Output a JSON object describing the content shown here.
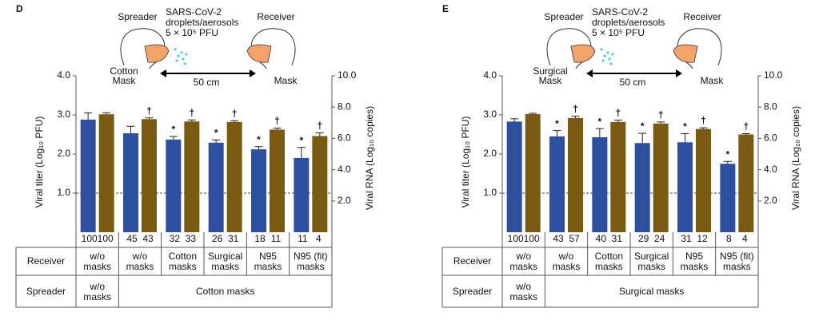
{
  "chart_data": [
    {
      "type": "bar",
      "panel": "D",
      "diagram": {
        "spreader": "Spreader",
        "receiver": "Receiver",
        "agent": [
          "SARS-CoV-2",
          "droplets/aerosols",
          "5 × 10⁵ PFU"
        ],
        "spreader_mask": [
          "Cotton",
          "Mask"
        ],
        "receiver_mask": "Mask",
        "distance": "50 cm"
      },
      "ylabel": "Viral titer (Log₁₀ PFU)",
      "y2label": "Viral RNA (Log₁₀ copies)",
      "ylim": [
        0,
        4
      ],
      "yticks": [
        {
          "value": 1,
          "label": "1.0"
        },
        {
          "value": 2,
          "label": "2.0"
        },
        {
          "value": 3,
          "label": "3.0"
        },
        {
          "value": 4,
          "label": "4.0"
        }
      ],
      "y2lim": [
        0,
        10
      ],
      "y2ticks": [
        {
          "value": 2,
          "label": "2.0"
        },
        {
          "value": 4,
          "label": "4.0"
        },
        {
          "value": 6,
          "label": "6.0"
        },
        {
          "value": 8,
          "label": "8.0"
        },
        {
          "value": 10,
          "label": "10.0"
        }
      ],
      "reference_line": 1,
      "categories": [
        "w/o masks",
        "w/o masks",
        "Cotton masks",
        "Surgical masks",
        "N95 masks",
        "N95 (fit) masks"
      ],
      "series": [
        {
          "color": "#2d4f9f",
          "axis": "y",
          "values": [
            2.88,
            2.53,
            2.37,
            2.29,
            2.12,
            1.9
          ],
          "errors": [
            0.17,
            0.18,
            0.08,
            0.07,
            0.07,
            0.27
          ],
          "relative": [
            100,
            45,
            32,
            26,
            18,
            11
          ],
          "significance": [
            null,
            null,
            "*",
            "*",
            "*",
            "*"
          ]
        },
        {
          "color": "#7b5b12",
          "axis": "y2",
          "values": [
            7.54,
            7.23,
            7.08,
            7.05,
            6.56,
            6.15
          ],
          "errors": [
            0.1,
            0.08,
            0.1,
            0.08,
            0.1,
            0.2
          ],
          "relative": [
            100,
            43,
            33,
            31,
            11,
            4
          ],
          "significance": [
            null,
            "†",
            "†",
            "†",
            "†",
            "†"
          ]
        }
      ],
      "row_labels": [
        "Receiver",
        "Spreader"
      ],
      "spreader_groups": [
        "w/o masks",
        "Cotton masks"
      ]
    },
    {
      "type": "bar",
      "panel": "E",
      "diagram": {
        "spreader": "Spreader",
        "receiver": "Receiver",
        "agent": [
          "SARS-CoV-2",
          "droplets/aerosols",
          "5 × 10⁵ PFU"
        ],
        "spreader_mask": [
          "Surgical",
          "Mask"
        ],
        "receiver_mask": "Mask",
        "distance": "50 cm"
      },
      "ylabel": "Viral titer (Log₁₀ PFU)",
      "y2label": "Viral RNA (Log₁₀ copies)",
      "ylim": [
        0,
        4
      ],
      "yticks": [
        {
          "value": 1,
          "label": "1.0"
        },
        {
          "value": 2,
          "label": "2.0"
        },
        {
          "value": 3,
          "label": "3.0"
        },
        {
          "value": 4,
          "label": "4.0"
        }
      ],
      "y2lim": [
        0,
        10
      ],
      "y2ticks": [
        {
          "value": 2,
          "label": "2.0"
        },
        {
          "value": 4,
          "label": "4.0"
        },
        {
          "value": 6,
          "label": "6.0"
        },
        {
          "value": 8,
          "label": "8.0"
        },
        {
          "value": 10,
          "label": "10.0"
        }
      ],
      "reference_line": 1,
      "categories": [
        "w/o masks",
        "w/o masks",
        "Cotton masks",
        "Surgical masks",
        "N95 masks",
        "N95 (fit) masks"
      ],
      "series": [
        {
          "color": "#2d4f9f",
          "axis": "y",
          "values": [
            2.83,
            2.45,
            2.43,
            2.28,
            2.3,
            1.75
          ],
          "errors": [
            0.07,
            0.15,
            0.22,
            0.25,
            0.22,
            0.06
          ],
          "relative": [
            100,
            43,
            40,
            29,
            31,
            8
          ],
          "significance": [
            null,
            "*",
            "*",
            "*",
            "*",
            "*"
          ]
        },
        {
          "color": "#7b5b12",
          "axis": "y2",
          "values": [
            7.55,
            7.3,
            7.05,
            6.95,
            6.6,
            6.25
          ],
          "errors": [
            0.05,
            0.12,
            0.12,
            0.1,
            0.08,
            0.05
          ],
          "relative": [
            100,
            57,
            31,
            24,
            12,
            4
          ],
          "significance": [
            null,
            "†",
            "†",
            "†",
            "†",
            "†"
          ]
        }
      ],
      "row_labels": [
        "Receiver",
        "Spreader"
      ],
      "spreader_groups": [
        "w/o masks",
        "Surgical masks"
      ]
    }
  ]
}
